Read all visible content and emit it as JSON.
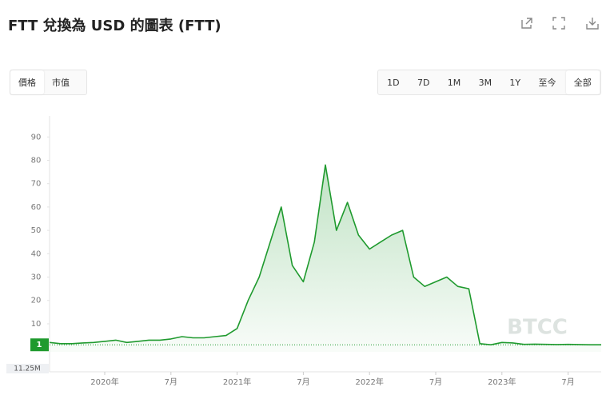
{
  "title": "FTT 兌換為 USD 的圖表 (FTT)",
  "tabs": [
    "價格",
    "市值"
  ],
  "ranges": [
    "1D",
    "7D",
    "1M",
    "3M",
    "1Y",
    "至今",
    "全部"
  ],
  "chart_data": {
    "type": "line",
    "color": "#1f9a2e",
    "x": [
      "2019-08",
      "2019-09",
      "2019-10",
      "2019-11",
      "2019-12",
      "2020-01",
      "2020-02",
      "2020-03",
      "2020-04",
      "2020-05",
      "2020-06",
      "2020-07",
      "2020-08",
      "2020-09",
      "2020-10",
      "2020-11",
      "2020-12",
      "2021-01",
      "2021-02",
      "2021-03",
      "2021-04",
      "2021-05",
      "2021-06",
      "2021-07",
      "2021-08",
      "2021-09",
      "2021-10",
      "2021-11",
      "2021-12",
      "2022-01",
      "2022-02",
      "2022-03",
      "2022-04",
      "2022-05",
      "2022-06",
      "2022-07",
      "2022-08",
      "2022-09",
      "2022-10",
      "2022-11",
      "2022-12",
      "2023-01",
      "2023-02",
      "2023-03",
      "2023-04",
      "2023-05",
      "2023-06",
      "2023-07",
      "2023-08",
      "2023-09",
      "2023-10"
    ],
    "values": [
      2,
      1.5,
      1.5,
      1.8,
      2,
      2.5,
      3,
      2,
      2.5,
      3,
      3,
      3.5,
      4.5,
      4,
      4,
      4.5,
      5,
      8,
      20,
      30,
      45,
      60,
      35,
      28,
      45,
      78,
      50,
      62,
      48,
      42,
      45,
      48,
      50,
      30,
      26,
      28,
      30,
      26,
      25,
      1.5,
      1,
      2,
      1.8,
      1.2,
      1.3,
      1.2,
      1.1,
      1.2,
      1.1,
      1,
      1
    ],
    "xlim": [
      "2019-08",
      "2023-10"
    ],
    "xticks": [
      {
        "value": "2020-01",
        "label": "2020年"
      },
      {
        "value": "2020-07",
        "label": "7月"
      },
      {
        "value": "2021-01",
        "label": "2021年"
      },
      {
        "value": "2021-07",
        "label": "7月"
      },
      {
        "value": "2022-01",
        "label": "2022年"
      },
      {
        "value": "2022-07",
        "label": "7月"
      },
      {
        "value": "2023-01",
        "label": "2023年"
      },
      {
        "value": "2023-07",
        "label": "7月"
      }
    ],
    "ylim": [
      -2,
      99
    ],
    "yticks": [
      10,
      20,
      30,
      40,
      50,
      60,
      70,
      80,
      90
    ],
    "last_price": 1,
    "volume_label": "11.25M",
    "watermark": "BTCC"
  }
}
